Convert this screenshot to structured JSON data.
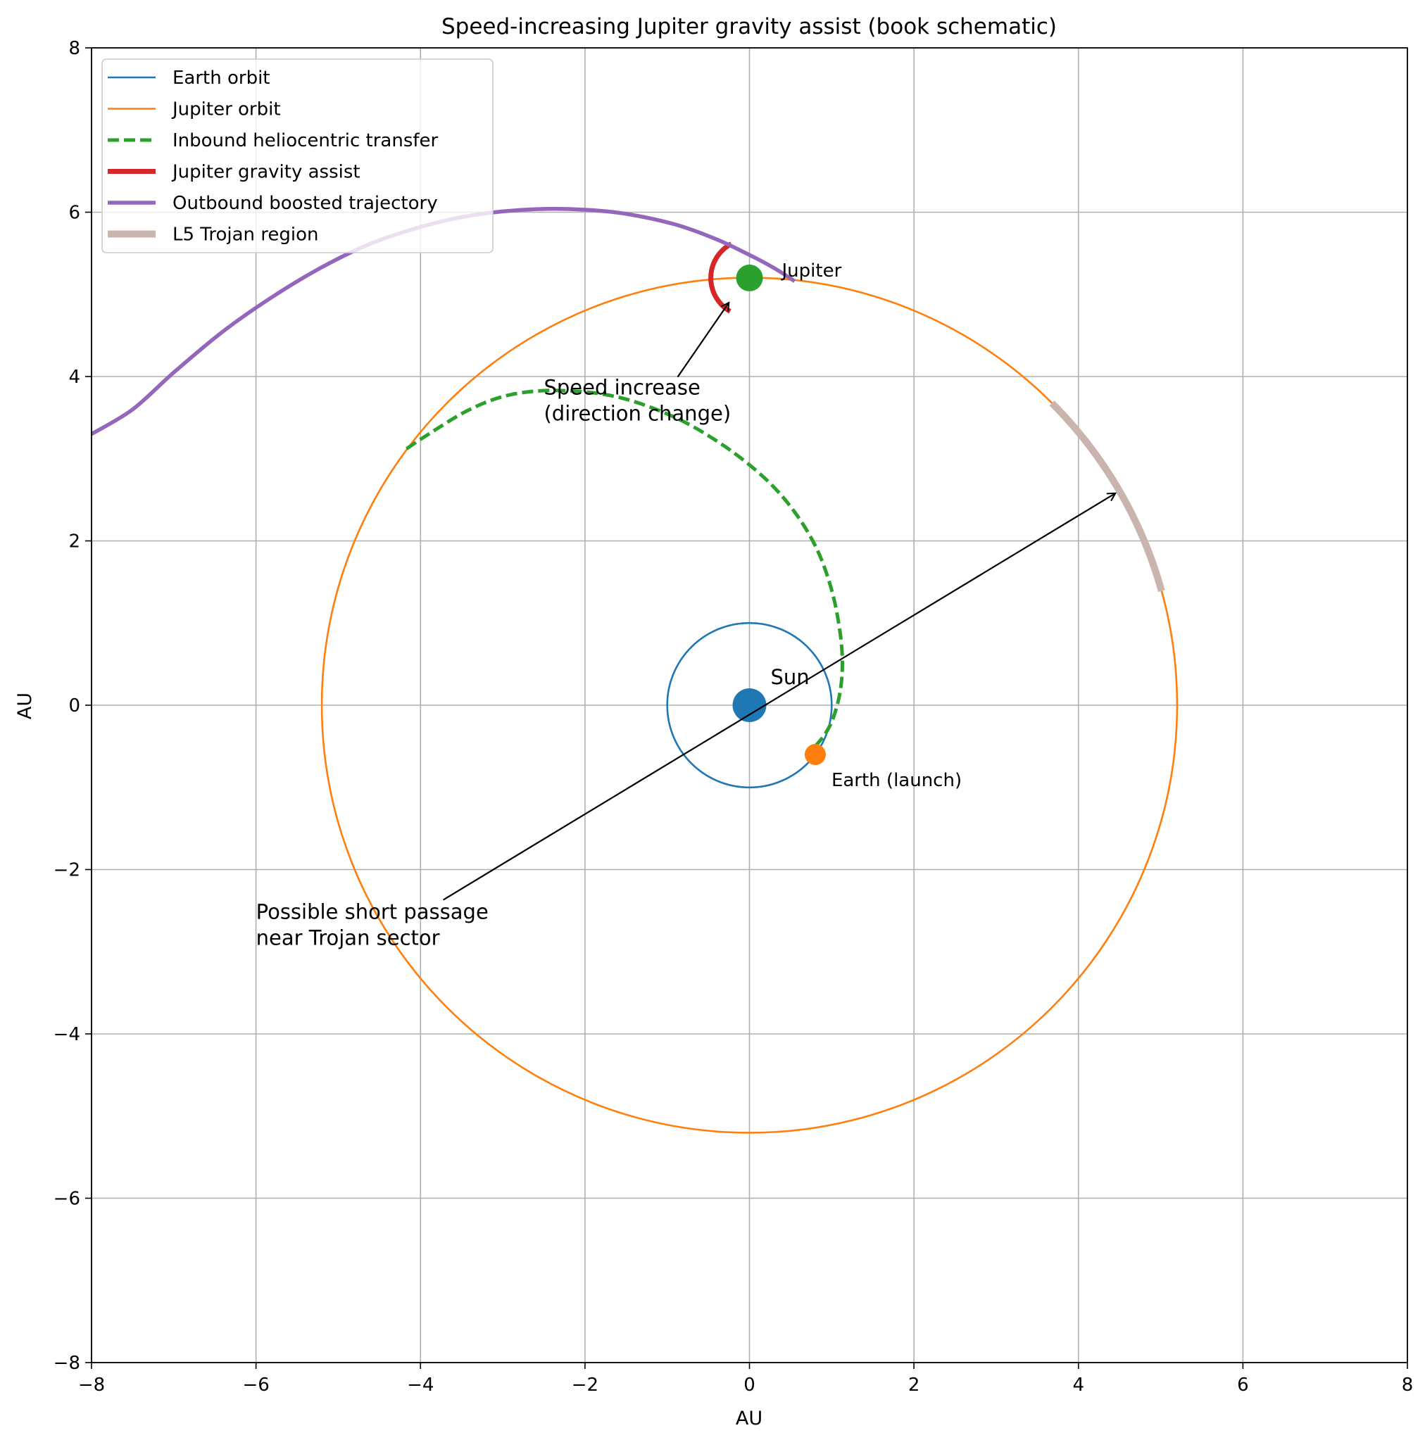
{
  "chart_data": {
    "type": "line",
    "title": "Speed-increasing Jupiter gravity assist (book schematic)",
    "xlabel": "AU",
    "ylabel": "AU",
    "xlim": [
      -8,
      8
    ],
    "ylim": [
      -8,
      8
    ],
    "xticks": [
      -8,
      -6,
      -4,
      -2,
      0,
      2,
      4,
      6,
      8
    ],
    "yticks": [
      -8,
      -6,
      -4,
      -2,
      0,
      2,
      4,
      6,
      8
    ],
    "xtick_labels": [
      "−8",
      "−6",
      "−4",
      "−2",
      "0",
      "2",
      "4",
      "6",
      "8"
    ],
    "ytick_labels": [
      "−8",
      "−6",
      "−4",
      "−2",
      "0",
      "2",
      "4",
      "6",
      "8"
    ],
    "grid": true,
    "legend_position": "top-left",
    "series": [
      {
        "name": "Earth orbit",
        "kind": "circle",
        "center": [
          0,
          0
        ],
        "radius": 1.0,
        "color": "#1f77b4",
        "style": "solid"
      },
      {
        "name": "Jupiter orbit",
        "kind": "circle",
        "center": [
          0,
          0
        ],
        "radius": 5.2,
        "color": "#ff7f0e",
        "style": "solid"
      },
      {
        "name": "Inbound heliocentric transfer",
        "kind": "path",
        "color": "#2ca02c",
        "style": "dashed",
        "x": [
          0.8,
          0.92,
          1.02,
          1.1,
          1.13,
          1.1,
          1.0,
          0.82,
          0.55,
          0.2,
          -0.3,
          -0.9,
          -1.6,
          -2.3,
          -2.9,
          -3.4,
          -3.9,
          -4.2
        ],
        "y": [
          -0.5,
          -0.35,
          -0.15,
          0.15,
          0.5,
          0.9,
          1.4,
          1.9,
          2.35,
          2.75,
          3.15,
          3.5,
          3.75,
          3.83,
          3.78,
          3.6,
          3.3,
          3.1
        ]
      },
      {
        "name": "Jupiter gravity assist",
        "kind": "arc",
        "center": [
          0,
          5.2
        ],
        "radius": 0.47,
        "start_deg": 118,
        "end_deg": 240,
        "color": "#d62728",
        "style": "solid"
      },
      {
        "name": "Outbound boosted trajectory",
        "kind": "path",
        "color": "#9467bd",
        "style": "solid",
        "x": [
          0.55,
          0.3,
          0.0,
          -0.4,
          -0.9,
          -1.5,
          -2.0,
          -2.5,
          -3.0,
          -3.5,
          -4.0,
          -4.6,
          -5.2,
          -5.8,
          -6.4,
          -7.0,
          -7.5,
          -8.0
        ],
        "y": [
          5.16,
          5.32,
          5.48,
          5.67,
          5.85,
          5.98,
          6.03,
          6.04,
          6.01,
          5.94,
          5.82,
          5.62,
          5.33,
          4.97,
          4.55,
          4.05,
          3.6,
          3.3
        ]
      },
      {
        "name": "L5 Trojan region",
        "kind": "arc",
        "center": [
          0,
          0
        ],
        "radius": 5.2,
        "start_deg": 15.5,
        "end_deg": 45,
        "color": "#c9b4ae",
        "style": "solid"
      }
    ],
    "points": [
      {
        "label": "Sun",
        "x": 0,
        "y": 0,
        "color": "#1f77b4"
      },
      {
        "label": "Jupiter",
        "x": 0,
        "y": 5.2,
        "color": "#2ca02c"
      },
      {
        "label": "Earth (launch)",
        "x": 0.8,
        "y": -0.6,
        "color": "#ff7f0e"
      }
    ],
    "annotations": [
      {
        "text_lines": [
          "Speed increase",
          "(direction change)"
        ],
        "text_x": -2.5,
        "text_y": 3.78,
        "arrow_to": [
          -0.25,
          4.9
        ]
      },
      {
        "text_lines": [
          "Possible short passage",
          "near Trojan sector"
        ],
        "text_x": -6.0,
        "text_y": -2.6,
        "arrow_to": [
          4.45,
          2.58
        ]
      }
    ]
  }
}
